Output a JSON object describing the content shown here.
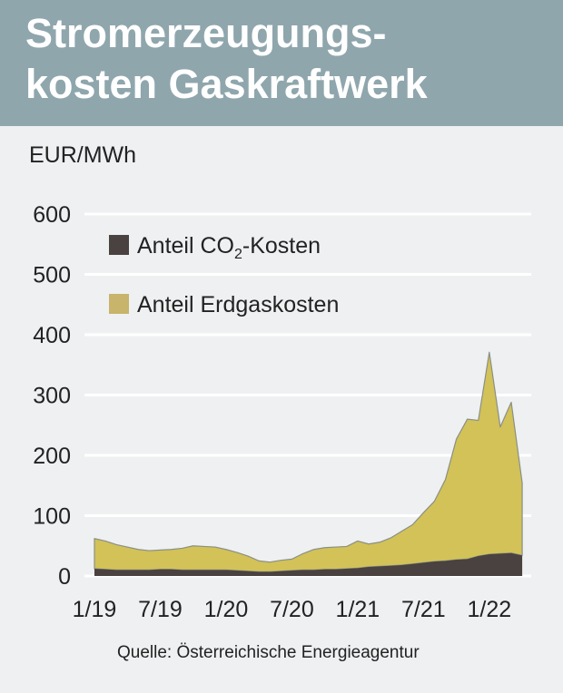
{
  "title_lines": [
    "Stromerzeugungs-",
    "kosten Gaskraftwerk"
  ],
  "unit_label": "EUR/MWh",
  "source": "Quelle: Österreichische Energieagentur",
  "colors": {
    "header_bg": "#8fa6ad",
    "co2": "#4a4240",
    "gas": "#d2c257",
    "gas_legend": "#c8b46a",
    "grid": "#ffffff",
    "background": "#eef0f2"
  },
  "chart_data": {
    "type": "area",
    "stacked": true,
    "ylim": [
      0,
      600
    ],
    "yticks": [
      0,
      100,
      200,
      300,
      400,
      500,
      600
    ],
    "xlim": [
      "2019-01",
      "2022-05"
    ],
    "xtick_labels": [
      "1/19",
      "7/19",
      "1/20",
      "7/20",
      "1/21",
      "7/21",
      "1/22"
    ],
    "grid": true,
    "legend_position": "top-left",
    "legend": [
      {
        "label_main": "Anteil CO",
        "label_sub": "2",
        "label_rest": "-Kosten",
        "color_key": "co2"
      },
      {
        "label_main": "Anteil Erdgaskosten",
        "label_sub": "",
        "label_rest": "",
        "color_key": "gas"
      }
    ],
    "x": [
      "2019-01",
      "2019-02",
      "2019-03",
      "2019-04",
      "2019-05",
      "2019-06",
      "2019-07",
      "2019-08",
      "2019-09",
      "2019-10",
      "2019-11",
      "2019-12",
      "2020-01",
      "2020-02",
      "2020-03",
      "2020-04",
      "2020-05",
      "2020-06",
      "2020-07",
      "2020-08",
      "2020-09",
      "2020-10",
      "2020-11",
      "2020-12",
      "2021-01",
      "2021-02",
      "2021-03",
      "2021-04",
      "2021-05",
      "2021-06",
      "2021-07",
      "2021-08",
      "2021-09",
      "2021-10",
      "2021-11",
      "2021-12",
      "2022-01",
      "2022-02",
      "2022-03",
      "2022-04"
    ],
    "series": [
      {
        "name": "Anteil CO2-Kosten",
        "color_key": "co2",
        "values": [
          12,
          11,
          10,
          10,
          10,
          10,
          11,
          11,
          10,
          10,
          10,
          10,
          10,
          9,
          8,
          7,
          7,
          8,
          9,
          10,
          10,
          11,
          11,
          12,
          13,
          15,
          16,
          17,
          18,
          20,
          22,
          24,
          25,
          27,
          28,
          33,
          36,
          37,
          38,
          34
        ]
      },
      {
        "name": "Anteil Erdgaskosten",
        "color_key": "gas",
        "values": [
          50,
          47,
          42,
          38,
          34,
          32,
          32,
          33,
          36,
          40,
          39,
          38,
          34,
          30,
          25,
          18,
          16,
          18,
          19,
          27,
          34,
          36,
          37,
          37,
          45,
          38,
          40,
          46,
          56,
          65,
          83,
          100,
          135,
          200,
          232,
          225,
          335,
          210,
          250,
          120
        ]
      }
    ]
  }
}
